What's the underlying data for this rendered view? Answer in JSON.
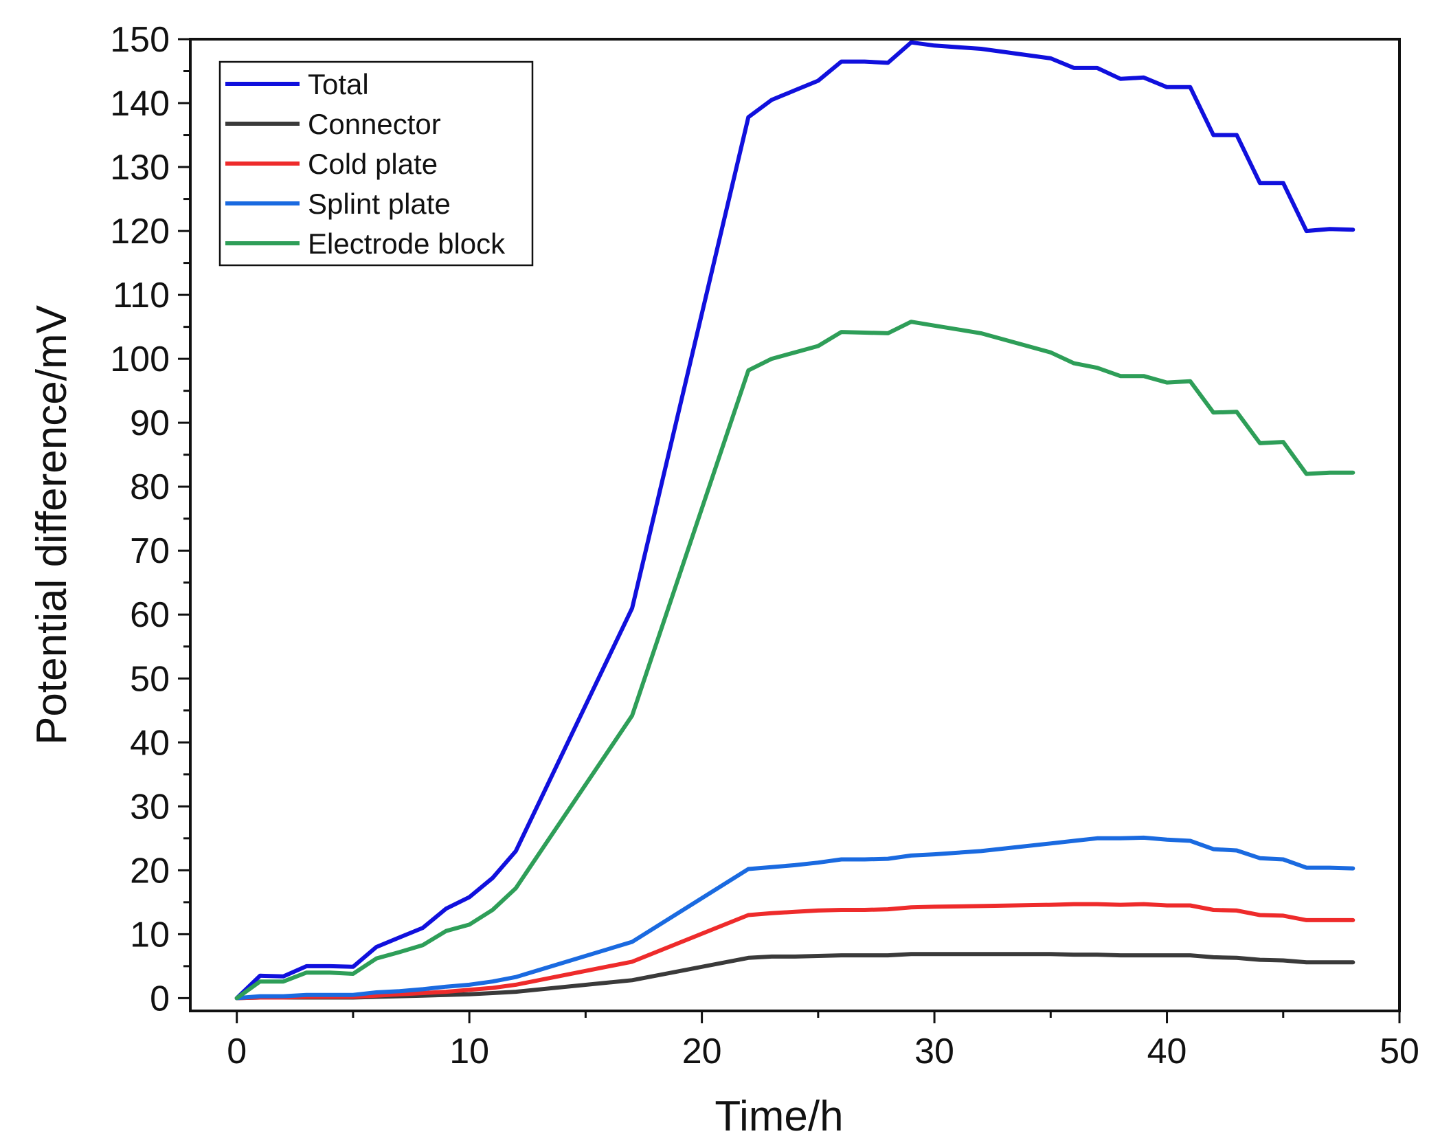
{
  "chart_data": {
    "type": "line",
    "title": "",
    "xlabel": "Time/h",
    "ylabel": "Potential difference/mV",
    "xlim": [
      -2,
      50
    ],
    "ylim": [
      -2,
      150
    ],
    "xticks": [
      0,
      10,
      20,
      30,
      40,
      50
    ],
    "yticks": [
      0,
      10,
      20,
      30,
      40,
      50,
      60,
      70,
      80,
      90,
      100,
      110,
      120,
      130,
      140,
      150
    ],
    "xtick_labels": [
      "0",
      "10",
      "20",
      "30",
      "40",
      "50"
    ],
    "ytick_labels": [
      "0",
      "10",
      "20",
      "30",
      "40",
      "50",
      "60",
      "70",
      "80",
      "90",
      "100",
      "110",
      "120",
      "130",
      "140",
      "150"
    ],
    "grid": false,
    "legend_position": "top-left",
    "x": [
      0,
      1,
      2,
      3,
      4,
      5,
      6,
      7,
      8,
      9,
      10,
      11,
      12,
      17,
      22,
      23,
      24,
      25,
      26,
      27,
      28,
      29,
      30,
      32,
      35,
      36,
      37,
      38,
      39,
      40,
      41,
      42,
      43,
      44,
      45,
      46,
      47,
      48
    ],
    "series": [
      {
        "name": "Total",
        "color": "#1010dd",
        "values": [
          0,
          3.5,
          3.4,
          5.0,
          5.0,
          4.9,
          8.0,
          9.5,
          11.0,
          14.0,
          15.8,
          18.8,
          23.0,
          61.0,
          137.8,
          140.5,
          142.0,
          143.5,
          146.5,
          146.5,
          146.3,
          149.5,
          149.0,
          148.5,
          147.0,
          145.5,
          145.5,
          143.8,
          144.0,
          142.5,
          142.5,
          135.0,
          135.0,
          127.5,
          127.5,
          120.0,
          120.3,
          120.2
        ]
      },
      {
        "name": "Connector",
        "color": "#3a3a3a",
        "values": [
          0,
          0.1,
          0.1,
          0.1,
          0.1,
          0.1,
          0.2,
          0.3,
          0.4,
          0.5,
          0.6,
          0.8,
          1.0,
          2.8,
          6.3,
          6.5,
          6.5,
          6.6,
          6.7,
          6.7,
          6.7,
          6.9,
          6.9,
          6.9,
          6.9,
          6.8,
          6.8,
          6.7,
          6.7,
          6.7,
          6.7,
          6.4,
          6.3,
          6.0,
          5.9,
          5.6,
          5.6,
          5.6
        ]
      },
      {
        "name": "Cold plate",
        "color": "#ee2b2b",
        "values": [
          0,
          0.1,
          0.1,
          0.2,
          0.2,
          0.2,
          0.4,
          0.6,
          0.8,
          1.0,
          1.3,
          1.6,
          2.1,
          5.7,
          13.0,
          13.3,
          13.5,
          13.7,
          13.8,
          13.8,
          13.9,
          14.2,
          14.3,
          14.4,
          14.6,
          14.7,
          14.7,
          14.6,
          14.7,
          14.5,
          14.5,
          13.8,
          13.7,
          13.0,
          12.9,
          12.2,
          12.2,
          12.2
        ]
      },
      {
        "name": "Splint plate",
        "color": "#1a6ae0",
        "values": [
          0,
          0.3,
          0.3,
          0.5,
          0.5,
          0.5,
          0.9,
          1.1,
          1.4,
          1.8,
          2.1,
          2.6,
          3.3,
          8.8,
          20.2,
          20.5,
          20.8,
          21.2,
          21.7,
          21.7,
          21.8,
          22.3,
          22.5,
          23.0,
          24.2,
          24.6,
          25.0,
          25.0,
          25.1,
          24.8,
          24.6,
          23.3,
          23.1,
          21.9,
          21.7,
          20.4,
          20.4,
          20.3
        ]
      },
      {
        "name": "Electrode block",
        "color": "#2e9e58",
        "values": [
          0,
          2.6,
          2.6,
          4.0,
          4.0,
          3.8,
          6.2,
          7.2,
          8.3,
          10.5,
          11.5,
          13.8,
          17.2,
          44.2,
          98.2,
          100.0,
          101.0,
          102.0,
          104.2,
          104.1,
          104.0,
          105.8,
          105.2,
          104.0,
          101.0,
          99.3,
          98.6,
          97.3,
          97.3,
          96.3,
          96.5,
          91.6,
          91.7,
          86.8,
          87.0,
          82.0,
          82.2,
          82.2
        ]
      }
    ]
  }
}
